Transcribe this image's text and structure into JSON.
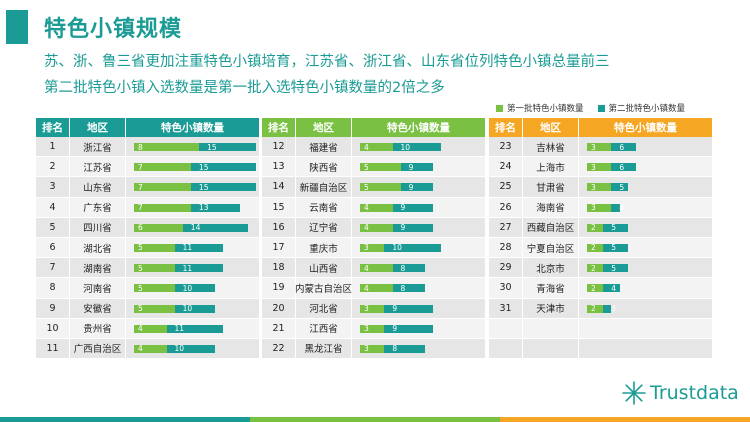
{
  "title": "特色小镇规模",
  "subtitle1": "苏、浙、鲁三省更加注重特色小镇培育，江苏省、浙江省、山东省位列特色小镇总量前三",
  "subtitle2": "第二批特色小镇入选数量是第一批入选特色小镇数量的2倍之多",
  "logo_text": "Trustdata",
  "colors": {
    "teal": "#1b9b95",
    "green": "#7ac143",
    "orange": "#f5a623",
    "header1": "#1b9b95",
    "header2": "#7ac143",
    "header3": "#f5a623"
  },
  "chart_data": {
    "type": "table",
    "legend": [
      {
        "name": "第一批特色小镇数量",
        "color": "#7ac143"
      },
      {
        "name": "第二批特色小镇数量",
        "color": "#1b9b95"
      }
    ],
    "columns": [
      "排名",
      "地区",
      "特色小镇数量"
    ],
    "tables": [
      {
        "rows": [
          {
            "rank": "1",
            "region": "浙江省",
            "first": 8,
            "second": 15
          },
          {
            "rank": "2",
            "region": "江苏省",
            "first": 7,
            "second": 15
          },
          {
            "rank": "3",
            "region": "山东省",
            "first": 7,
            "second": 15
          },
          {
            "rank": "4",
            "region": "广东省",
            "first": 7,
            "second": 13
          },
          {
            "rank": "5",
            "region": "四川省",
            "first": 6,
            "second": 14
          },
          {
            "rank": "6",
            "region": "湖北省",
            "first": 5,
            "second": 11
          },
          {
            "rank": "7",
            "region": "湖南省",
            "first": 5,
            "second": 11
          },
          {
            "rank": "8",
            "region": "河南省",
            "first": 5,
            "second": 10
          },
          {
            "rank": "9",
            "region": "安徽省",
            "first": 5,
            "second": 10
          },
          {
            "rank": "10",
            "region": "贵州省",
            "first": 4,
            "second": 11
          },
          {
            "rank": "11",
            "region": "广西自治区",
            "first": 4,
            "second": 10
          }
        ]
      },
      {
        "rows": [
          {
            "rank": "12",
            "region": "福建省",
            "first": 4,
            "second": 10
          },
          {
            "rank": "13",
            "region": "陕西省",
            "first": 5,
            "second": 9
          },
          {
            "rank": "14",
            "region": "新疆自治区",
            "first": 5,
            "second": 9
          },
          {
            "rank": "15",
            "region": "云南省",
            "first": 4,
            "second": 9
          },
          {
            "rank": "16",
            "region": "辽宁省",
            "first": 4,
            "second": 9
          },
          {
            "rank": "17",
            "region": "重庆市",
            "first": 3,
            "second": 10
          },
          {
            "rank": "18",
            "region": "山西省",
            "first": 4,
            "second": 8
          },
          {
            "rank": "19",
            "region": "内蒙古自治区",
            "first": 4,
            "second": 8
          },
          {
            "rank": "20",
            "region": "河北省",
            "first": 3,
            "second": 9
          },
          {
            "rank": "21",
            "region": "江西省",
            "first": 3,
            "second": 9
          },
          {
            "rank": "22",
            "region": "黑龙江省",
            "first": 3,
            "second": 8
          }
        ]
      },
      {
        "rows": [
          {
            "rank": "23",
            "region": "吉林省",
            "first": 3,
            "second": 6
          },
          {
            "rank": "24",
            "region": "上海市",
            "first": 3,
            "second": 6
          },
          {
            "rank": "25",
            "region": "甘肃省",
            "first": 3,
            "second": 5
          },
          {
            "rank": "26",
            "region": "海南省",
            "first": 3,
            "second": 4
          },
          {
            "rank": "27",
            "region": "西藏自治区",
            "first": 2,
            "second": 5
          },
          {
            "rank": "28",
            "region": "宁夏自治区",
            "first": 2,
            "second": 5
          },
          {
            "rank": "29",
            "region": "北京市",
            "first": 2,
            "second": 5
          },
          {
            "rank": "30",
            "region": "青海省",
            "first": 2,
            "second": 4
          },
          {
            "rank": "31",
            "region": "天津市",
            "first": 2,
            "second": 3
          },
          {
            "rank": "",
            "region": "",
            "first": null,
            "second": null
          },
          {
            "rank": "",
            "region": "",
            "first": null,
            "second": null
          }
        ]
      }
    ]
  }
}
